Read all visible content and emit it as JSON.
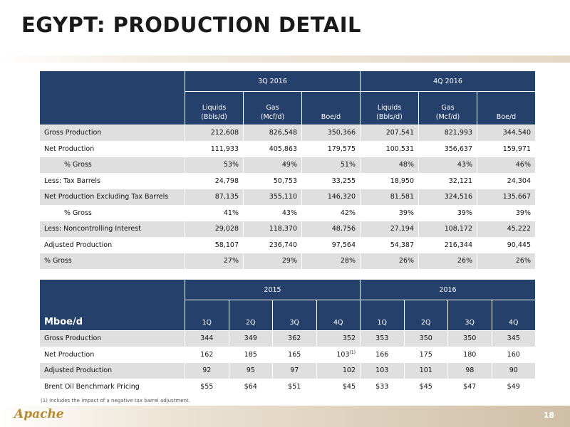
{
  "page": {
    "title": "EGYPT: PRODUCTION DETAIL",
    "footnote": "(1) Includes the impact of a negative tax barrel adjustment.",
    "logo_text": "Apache",
    "page_number": "18"
  },
  "table1": {
    "periods": [
      "3Q 2016",
      "4Q 2016"
    ],
    "subheaders": [
      {
        "l1": "Liquids",
        "l2": "(Bbls/d)"
      },
      {
        "l1": "Gas",
        "l2": "(Mcf/d)"
      },
      {
        "l1": "",
        "l2": "Boe/d"
      },
      {
        "l1": "Liquids",
        "l2": "(Bbls/d)"
      },
      {
        "l1": "Gas",
        "l2": "(Mcf/d)"
      },
      {
        "l1": "",
        "l2": "Boe/d"
      }
    ],
    "rows": [
      {
        "label": "Gross Production",
        "values": [
          "212,608",
          "826,548",
          "350,366",
          "207,541",
          "821,993",
          "344,540"
        ]
      },
      {
        "label": "Net Production",
        "values": [
          "111,933",
          "405,863",
          "179,575",
          "100,531",
          "356,637",
          "159,971"
        ]
      },
      {
        "label": "% Gross",
        "values": [
          "53%",
          "49%",
          "51%",
          "48%",
          "43%",
          "46%"
        ]
      },
      {
        "label": "Less: Tax Barrels",
        "values": [
          "24,798",
          "50,753",
          "33,255",
          "18,950",
          "32,121",
          "24,304"
        ]
      },
      {
        "label": "Net Production Excluding Tax Barrels",
        "values": [
          "87,135",
          "355,110",
          "146,320",
          "81,581",
          "324,516",
          "135,667"
        ]
      },
      {
        "label": "% Gross",
        "values": [
          "41%",
          "43%",
          "42%",
          "39%",
          "39%",
          "39%"
        ]
      },
      {
        "label": "Less: Noncontrolling Interest",
        "values": [
          "29,028",
          "118,370",
          "48,756",
          "27,194",
          "108,172",
          "45,222"
        ]
      },
      {
        "label": "Adjusted Production",
        "values": [
          "58,107",
          "236,740",
          "97,564",
          "54,387",
          "216,344",
          "90,445"
        ]
      },
      {
        "label": "% Gross",
        "values": [
          "27%",
          "29%",
          "28%",
          "26%",
          "26%",
          "26%"
        ]
      }
    ]
  },
  "table2": {
    "unit_label": "Mboe/d",
    "years": [
      "2015",
      "2016"
    ],
    "quarters": [
      "1Q",
      "2Q",
      "3Q",
      "4Q",
      "1Q",
      "2Q",
      "3Q",
      "4Q"
    ],
    "footnote_marker": "(1)",
    "rows": [
      {
        "label": "Gross Production",
        "values": [
          "344",
          "349",
          "362",
          "352",
          "353",
          "350",
          "350",
          "345"
        ]
      },
      {
        "label": "Net Production",
        "values": [
          "162",
          "185",
          "165",
          "103",
          "166",
          "175",
          "180",
          "160"
        ]
      },
      {
        "label": "Adjusted Production",
        "values": [
          "92",
          "95",
          "97",
          "102",
          "103",
          "101",
          "98",
          "90"
        ]
      },
      {
        "label": "Brent Oil Benchmark Pricing",
        "values": [
          "$55",
          "$64",
          "$51",
          "$45",
          "$33",
          "$45",
          "$47",
          "$49"
        ]
      }
    ]
  }
}
